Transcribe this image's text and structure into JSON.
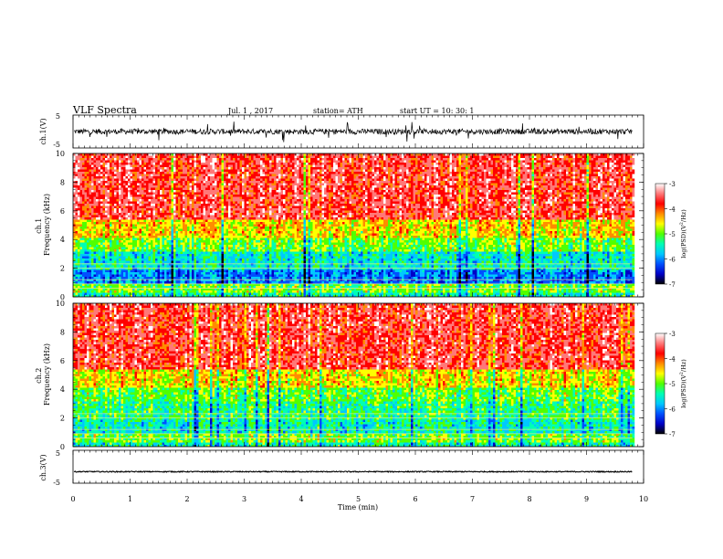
{
  "header": {
    "title": "VLF  Spectra",
    "date": "Jul.  1  , 2017",
    "station": "station= ATH",
    "start": "start  UT  =    10: 30: 1"
  },
  "chart_data": [
    {
      "type": "line",
      "panel": "ch1-waveform",
      "ylabel": "ch.1(V)",
      "ylim": [
        -5,
        5
      ],
      "yticks": [
        "5",
        "-5"
      ],
      "xlim": [
        0,
        10
      ],
      "series": [
        {
          "x_range_min": [
            0,
            9.8
          ],
          "mean_V": 0.0,
          "amplitude_V": 1.5
        }
      ]
    },
    {
      "type": "heatmap",
      "panel": "ch1-spectrogram",
      "ylabel": "ch.1\nFrequency  (kHz)",
      "ylim": [
        0,
        10
      ],
      "yticks": [
        "0",
        "2",
        "4",
        "6",
        "8",
        "10"
      ],
      "xlim": [
        0,
        10
      ],
      "x_data_end_min": 9.8,
      "bands": [
        {
          "from_kHz": 0,
          "to_kHz": 0.3,
          "level": "mixed"
        },
        {
          "from_kHz": 0.3,
          "to_kHz": 1.0,
          "level": "cyan-green"
        },
        {
          "from_kHz": 1.0,
          "to_kHz": 2.0,
          "level": "blue"
        },
        {
          "from_kHz": 2.0,
          "to_kHz": 3.5,
          "level": "cyan"
        },
        {
          "from_kHz": 3.5,
          "to_kHz": 5.5,
          "level": "green-yellow"
        },
        {
          "from_kHz": 5.5,
          "to_kHz": 10,
          "level": "red"
        }
      ],
      "colorbar": {
        "label": "log(PSD)(V²/Hz)",
        "ticks": [
          "-3",
          "-4",
          "-5",
          "-6",
          "-7"
        ],
        "range": [
          -7,
          -3
        ]
      }
    },
    {
      "type": "heatmap",
      "panel": "ch2-spectrogram",
      "ylabel": "ch.2\nFrequency  (kHz)",
      "ylim": [
        0,
        10
      ],
      "yticks": [
        "0",
        "2",
        "4",
        "6",
        "8",
        "10"
      ],
      "xlim": [
        0,
        10
      ],
      "x_data_end_min": 9.8,
      "colorbar": {
        "label": "log(PSD)(V²/Hz)",
        "ticks": [
          "-3",
          "-4",
          "-5",
          "-6",
          "-7"
        ],
        "range": [
          -7,
          -3
        ]
      }
    },
    {
      "type": "line",
      "panel": "ch3-waveform",
      "ylabel": "ch.3(V)",
      "ylim": [
        -5,
        5
      ],
      "yticks": [
        "5",
        "-5"
      ],
      "xlim": [
        0,
        10
      ],
      "series": [
        {
          "mean_V": -1.5,
          "amplitude_V": 0.15
        }
      ]
    }
  ],
  "xaxis": {
    "label": "Time  (min)",
    "ticks": [
      "0",
      "1",
      "2",
      "3",
      "4",
      "5",
      "6",
      "7",
      "8",
      "9",
      "10"
    ]
  },
  "colors": {
    "scale": [
      "#000000",
      "#0000c8",
      "#0050ff",
      "#00c8ff",
      "#00ffb4",
      "#50ff00",
      "#ffff00",
      "#ff8c00",
      "#ff0000",
      "#ff7878",
      "#ffffff"
    ]
  }
}
